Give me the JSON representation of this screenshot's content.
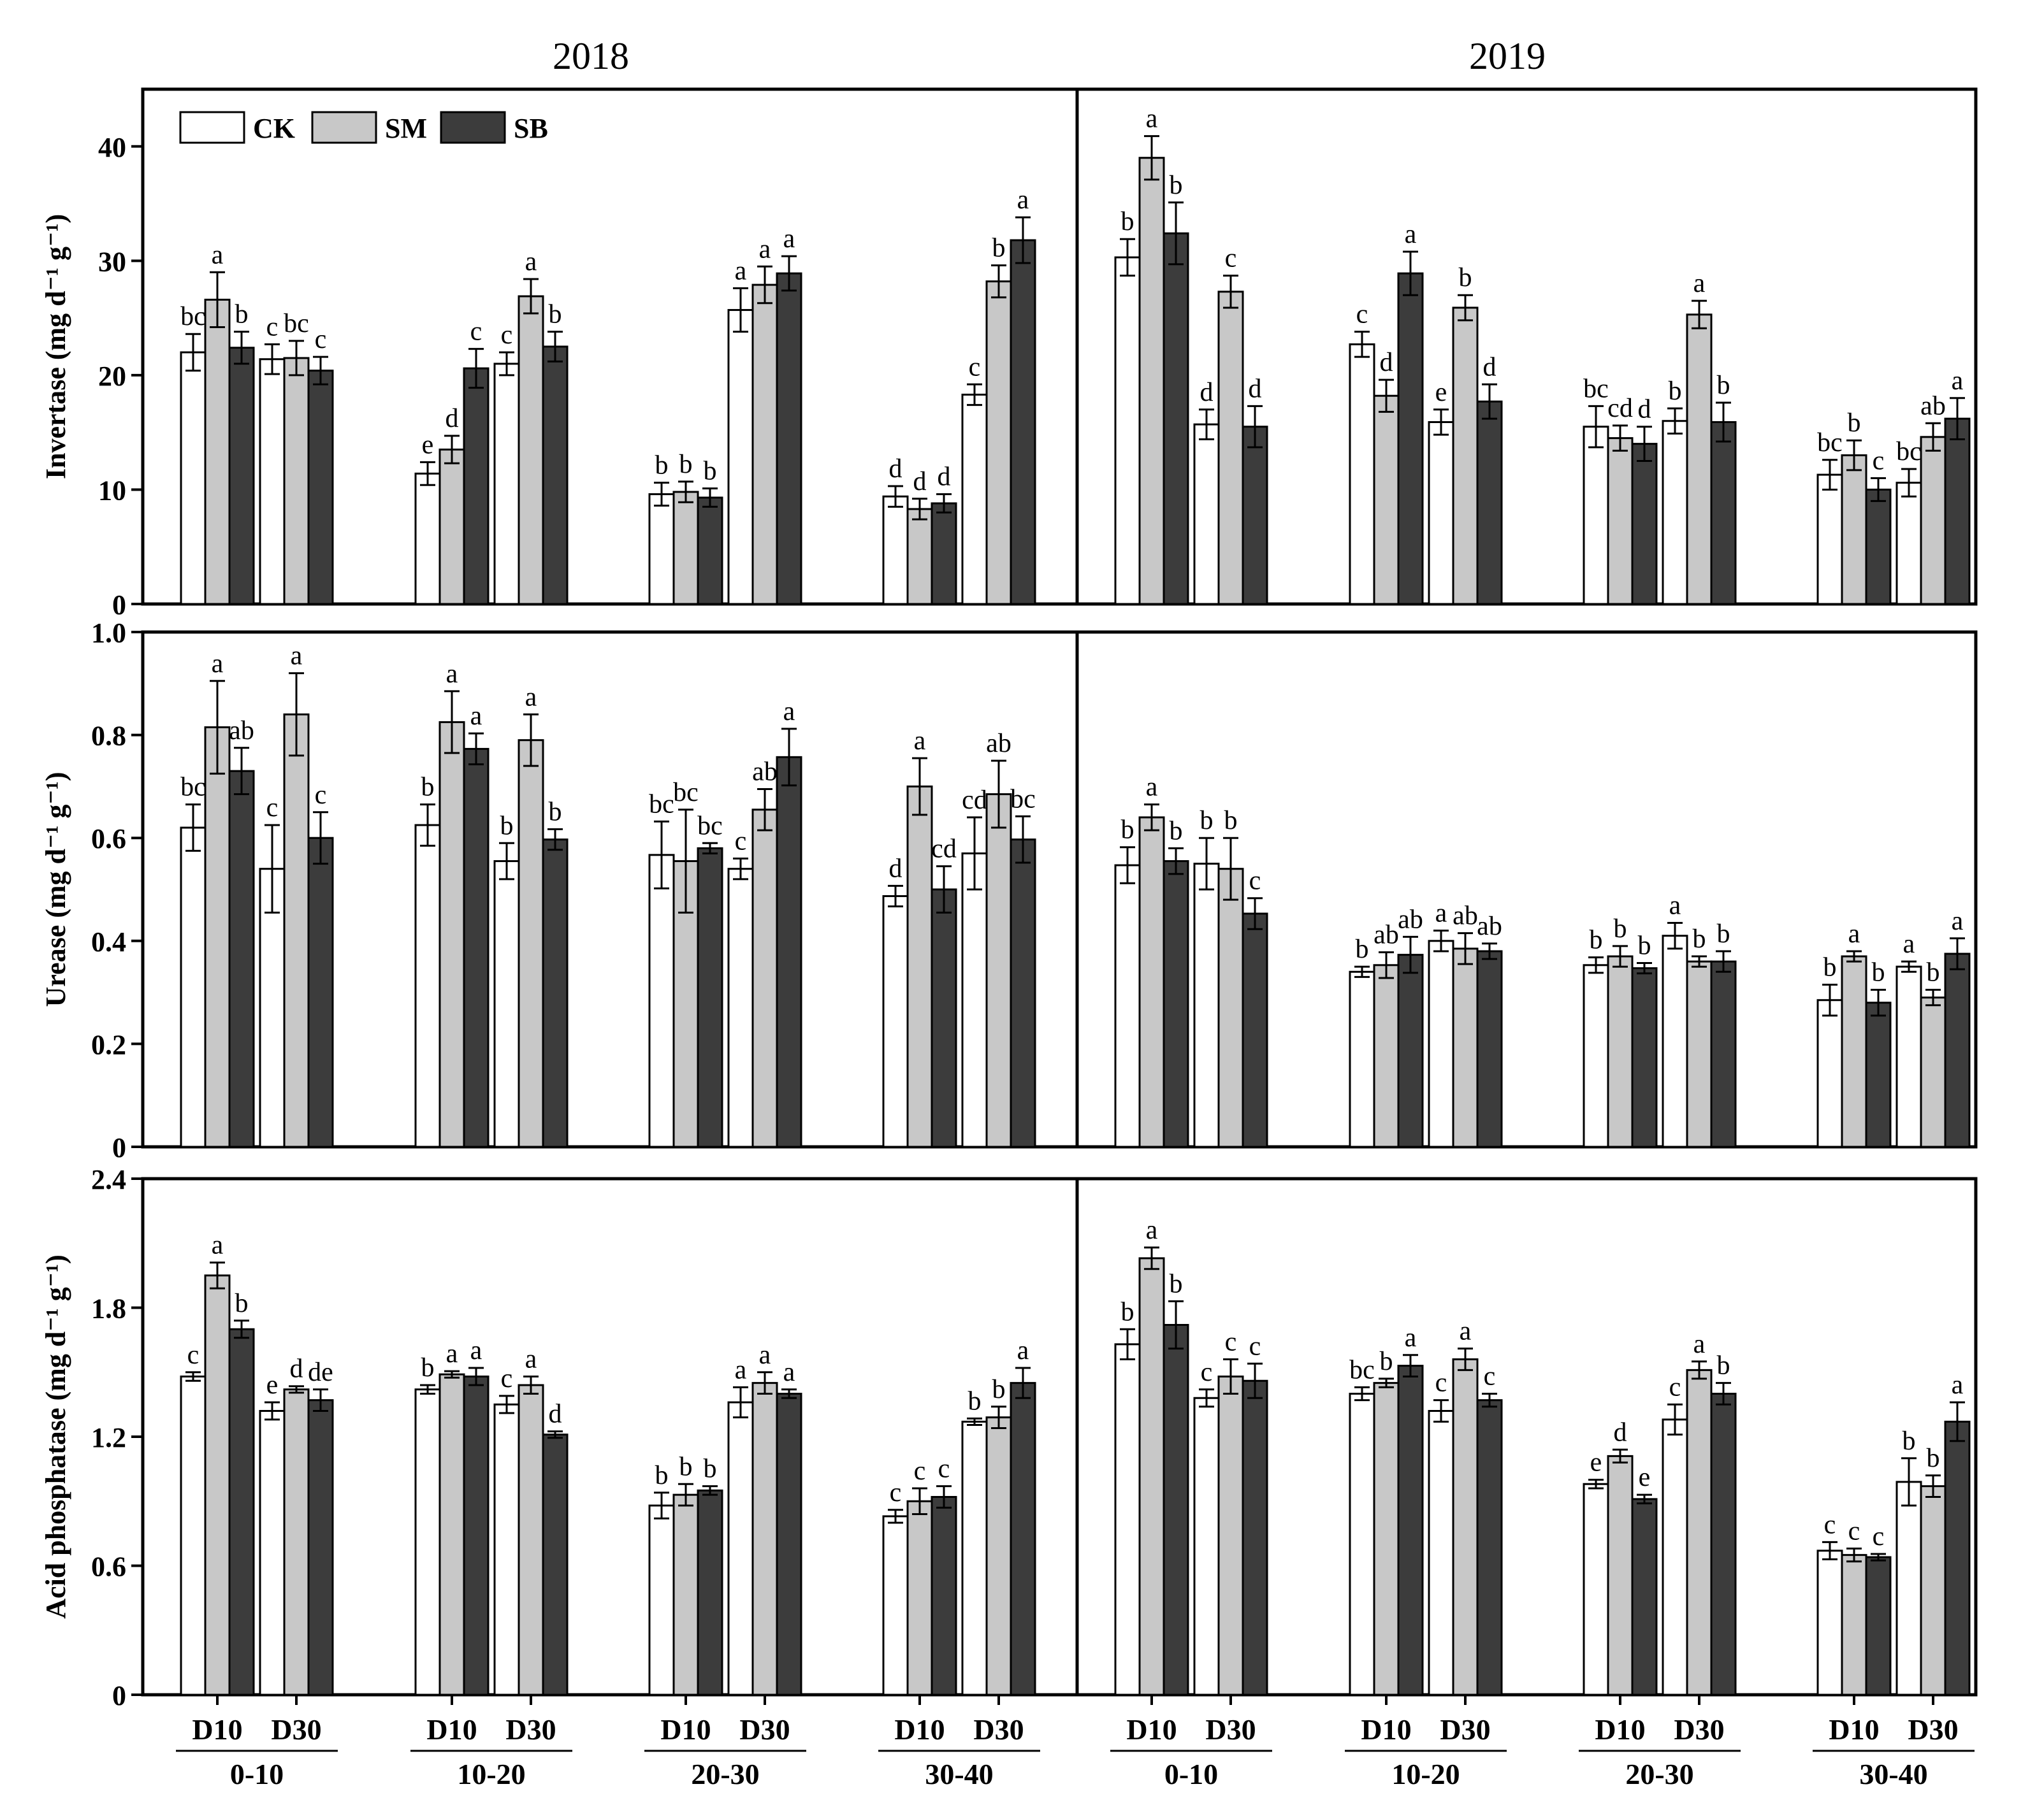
{
  "chart_data": {
    "type": "bar",
    "title": "",
    "column_titles": [
      "2018",
      "2019"
    ],
    "legend": [
      "CK",
      "SM",
      "SB"
    ],
    "colors": {
      "CK": "#ffffff",
      "SM": "#c8c8c8",
      "SB": "#3c3c3c"
    },
    "depths": [
      "0-10",
      "10-20",
      "20-30",
      "30-40"
    ],
    "timings": [
      "D10",
      "D30"
    ],
    "panels": [
      {
        "name": "invertase",
        "ylabel": "Invertase (mg d⁻¹ g⁻¹)",
        "ylim": [
          0,
          45
        ],
        "yticks": [
          0,
          10,
          20,
          30,
          40
        ],
        "yticklabels": [
          "0",
          "10",
          "20",
          "30",
          "40"
        ],
        "years": [
          [
            [
              [
                22.0,
                26.6,
                22.4
              ],
              [
                21.4,
                21.5,
                20.4
              ]
            ],
            [
              [
                11.4,
                13.5,
                20.6
              ],
              [
                21.0,
                26.9,
                22.5
              ]
            ],
            [
              [
                9.6,
                9.8,
                9.3
              ],
              [
                25.7,
                27.9,
                28.9
              ]
            ],
            [
              [
                9.4,
                8.3,
                8.8
              ],
              [
                18.3,
                28.2,
                31.8
              ]
            ]
          ],
          [
            [
              [
                30.3,
                39.0,
                32.4
              ],
              [
                15.7,
                27.3,
                15.5
              ]
            ],
            [
              [
                22.7,
                18.2,
                28.9
              ],
              [
                15.9,
                25.9,
                17.7
              ]
            ],
            [
              [
                15.5,
                14.5,
                14.0
              ],
              [
                16.0,
                25.3,
                15.9
              ]
            ],
            [
              [
                11.3,
                13.0,
                10.0
              ],
              [
                10.6,
                14.6,
                16.2
              ]
            ]
          ]
        ],
        "errors": [
          [
            [
              [
                1.6,
                2.4,
                1.4
              ],
              [
                1.3,
                1.5,
                1.2
              ]
            ],
            [
              [
                1.0,
                1.2,
                1.7
              ],
              [
                1.0,
                1.5,
                1.3
              ]
            ],
            [
              [
                1.0,
                0.9,
                0.8
              ],
              [
                1.9,
                1.6,
                1.5
              ]
            ],
            [
              [
                0.9,
                0.9,
                0.8
              ],
              [
                0.9,
                1.4,
                2.0
              ]
            ]
          ],
          [
            [
              [
                1.6,
                1.9,
                2.7
              ],
              [
                1.3,
                1.4,
                1.8
              ]
            ],
            [
              [
                1.1,
                1.4,
                1.9
              ],
              [
                1.1,
                1.1,
                1.5
              ]
            ],
            [
              [
                1.8,
                1.1,
                1.5
              ],
              [
                1.1,
                1.2,
                1.7
              ]
            ],
            [
              [
                1.3,
                1.3,
                1.0
              ],
              [
                1.2,
                1.2,
                1.8
              ]
            ]
          ]
        ],
        "letters": [
          [
            [
              [
                "bc",
                "a",
                "b"
              ],
              [
                "c",
                "bc",
                "c"
              ]
            ],
            [
              [
                "e",
                "d",
                "c"
              ],
              [
                "c",
                "a",
                "b"
              ]
            ],
            [
              [
                "b",
                "b",
                "b"
              ],
              [
                "a",
                "a",
                "a"
              ]
            ],
            [
              [
                "d",
                "d",
                "d"
              ],
              [
                "c",
                "b",
                "a"
              ]
            ]
          ],
          [
            [
              [
                "b",
                "a",
                "b"
              ],
              [
                "d",
                "c",
                "d"
              ]
            ],
            [
              [
                "c",
                "d",
                "a"
              ],
              [
                "e",
                "b",
                "d"
              ]
            ],
            [
              [
                "bc",
                "cd",
                "d"
              ],
              [
                "b",
                "a",
                "b"
              ]
            ],
            [
              [
                "bc",
                "b",
                "c"
              ],
              [
                "bc",
                "ab",
                "a"
              ]
            ]
          ]
        ]
      },
      {
        "name": "urease",
        "ylabel": "Urease (mg d⁻¹ g⁻¹)",
        "ylim": [
          0,
          1.0
        ],
        "yticks": [
          0,
          0.2,
          0.4,
          0.6,
          0.8,
          1.0
        ],
        "yticklabels": [
          "0",
          "0.2",
          "0.4",
          "0.6",
          "0.8",
          "1.0"
        ],
        "years": [
          [
            [
              [
                0.62,
                0.815,
                0.73
              ],
              [
                0.54,
                0.84,
                0.6
              ]
            ],
            [
              [
                0.625,
                0.825,
                0.773
              ],
              [
                0.555,
                0.79,
                0.597
              ]
            ],
            [
              [
                0.567,
                0.555,
                0.58
              ],
              [
                0.54,
                0.655,
                0.757
              ]
            ],
            [
              [
                0.487,
                0.7,
                0.5
              ],
              [
                0.57,
                0.685,
                0.597
              ]
            ]
          ],
          [
            [
              [
                0.547,
                0.64,
                0.555
              ],
              [
                0.55,
                0.54,
                0.453
              ]
            ],
            [
              [
                0.34,
                0.353,
                0.373
              ],
              [
                0.4,
                0.385,
                0.38
              ]
            ],
            [
              [
                0.353,
                0.37,
                0.347
              ],
              [
                0.41,
                0.36,
                0.36
              ]
            ],
            [
              [
                0.285,
                0.37,
                0.28
              ],
              [
                0.35,
                0.29,
                0.375
              ]
            ]
          ]
        ],
        "errors": [
          [
            [
              [
                0.045,
                0.09,
                0.045
              ],
              [
                0.085,
                0.08,
                0.05
              ]
            ],
            [
              [
                0.04,
                0.06,
                0.03
              ],
              [
                0.035,
                0.05,
                0.02
              ]
            ],
            [
              [
                0.065,
                0.1,
                0.01
              ],
              [
                0.02,
                0.04,
                0.055
              ]
            ],
            [
              [
                0.02,
                0.055,
                0.045
              ],
              [
                0.07,
                0.065,
                0.045
              ]
            ]
          ],
          [
            [
              [
                0.035,
                0.025,
                0.025
              ],
              [
                0.05,
                0.06,
                0.03
              ]
            ],
            [
              [
                0.01,
                0.025,
                0.035
              ],
              [
                0.02,
                0.03,
                0.015
              ]
            ],
            [
              [
                0.015,
                0.02,
                0.01
              ],
              [
                0.025,
                0.01,
                0.02
              ]
            ],
            [
              [
                0.03,
                0.01,
                0.025
              ],
              [
                0.01,
                0.015,
                0.03
              ]
            ]
          ]
        ],
        "letters": [
          [
            [
              [
                "bc",
                "a",
                "ab"
              ],
              [
                "c",
                "a",
                "c"
              ]
            ],
            [
              [
                "b",
                "a",
                "a"
              ],
              [
                "b",
                "a",
                "b"
              ]
            ],
            [
              [
                "bc",
                "bc",
                "bc"
              ],
              [
                "c",
                "ab",
                "a"
              ]
            ],
            [
              [
                "d",
                "a",
                "cd"
              ],
              [
                "cd",
                "ab",
                "bc"
              ]
            ]
          ],
          [
            [
              [
                "b",
                "a",
                "b"
              ],
              [
                "b",
                "b",
                "c"
              ]
            ],
            [
              [
                "b",
                "ab",
                "ab"
              ],
              [
                "a",
                "ab",
                "ab"
              ]
            ],
            [
              [
                "b",
                "b",
                "b"
              ],
              [
                "a",
                "b",
                "b"
              ]
            ],
            [
              [
                "b",
                "a",
                "b"
              ],
              [
                "a",
                "b",
                "a"
              ]
            ]
          ]
        ]
      },
      {
        "name": "acid-phosphatase",
        "ylabel": "Acid phosphatase (mg d⁻¹ g⁻¹)",
        "ylim": [
          0,
          2.4
        ],
        "yticks": [
          0,
          0.6,
          1.2,
          1.8,
          2.4
        ],
        "yticklabels": [
          "0",
          "0.6",
          "1.2",
          "1.8",
          "2.4"
        ],
        "years": [
          [
            [
              [
                1.48,
                1.95,
                1.7
              ],
              [
                1.32,
                1.42,
                1.37
              ]
            ],
            [
              [
                1.42,
                1.49,
                1.48
              ],
              [
                1.35,
                1.44,
                1.21
              ]
            ],
            [
              [
                0.88,
                0.93,
                0.95
              ],
              [
                1.36,
                1.45,
                1.4
              ]
            ],
            [
              [
                0.83,
                0.9,
                0.92
              ],
              [
                1.27,
                1.29,
                1.45
              ]
            ]
          ],
          [
            [
              [
                1.63,
                2.03,
                1.72
              ],
              [
                1.38,
                1.48,
                1.46
              ]
            ],
            [
              [
                1.4,
                1.45,
                1.53
              ],
              [
                1.32,
                1.56,
                1.37
              ]
            ],
            [
              [
                0.98,
                1.11,
                0.91
              ],
              [
                1.28,
                1.51,
                1.4
              ]
            ],
            [
              [
                0.67,
                0.65,
                0.64
              ],
              [
                0.99,
                0.97,
                1.27
              ]
            ]
          ]
        ],
        "errors": [
          [
            [
              [
                0.02,
                0.06,
                0.04
              ],
              [
                0.04,
                0.015,
                0.05
              ]
            ],
            [
              [
                0.02,
                0.015,
                0.04
              ],
              [
                0.04,
                0.04,
                0.015
              ]
            ],
            [
              [
                0.06,
                0.05,
                0.02
              ],
              [
                0.07,
                0.05,
                0.02
              ]
            ],
            [
              [
                0.03,
                0.06,
                0.05
              ],
              [
                0.015,
                0.05,
                0.07
              ]
            ]
          ],
          [
            [
              [
                0.07,
                0.05,
                0.11
              ],
              [
                0.04,
                0.08,
                0.08
              ]
            ],
            [
              [
                0.03,
                0.02,
                0.05
              ],
              [
                0.05,
                0.05,
                0.03
              ]
            ],
            [
              [
                0.02,
                0.03,
                0.02
              ],
              [
                0.07,
                0.04,
                0.05
              ]
            ],
            [
              [
                0.04,
                0.03,
                0.015
              ],
              [
                0.11,
                0.05,
                0.09
              ]
            ]
          ]
        ],
        "letters": [
          [
            [
              [
                "c",
                "a",
                "b"
              ],
              [
                "e",
                "d",
                "de"
              ]
            ],
            [
              [
                "b",
                "a",
                "a"
              ],
              [
                "c",
                "a",
                "d"
              ]
            ],
            [
              [
                "b",
                "b",
                "b"
              ],
              [
                "a",
                "a",
                "a"
              ]
            ],
            [
              [
                "c",
                "c",
                "c"
              ],
              [
                "b",
                "b",
                "a"
              ]
            ]
          ],
          [
            [
              [
                "b",
                "a",
                "b"
              ],
              [
                "c",
                "c",
                "c"
              ]
            ],
            [
              [
                "bc",
                "b",
                "a"
              ],
              [
                "c",
                "a",
                "c"
              ]
            ],
            [
              [
                "e",
                "d",
                "e"
              ],
              [
                "c",
                "a",
                "b"
              ]
            ],
            [
              [
                "c",
                "c",
                "c"
              ],
              [
                "b",
                "b",
                "a"
              ]
            ]
          ]
        ]
      }
    ]
  }
}
